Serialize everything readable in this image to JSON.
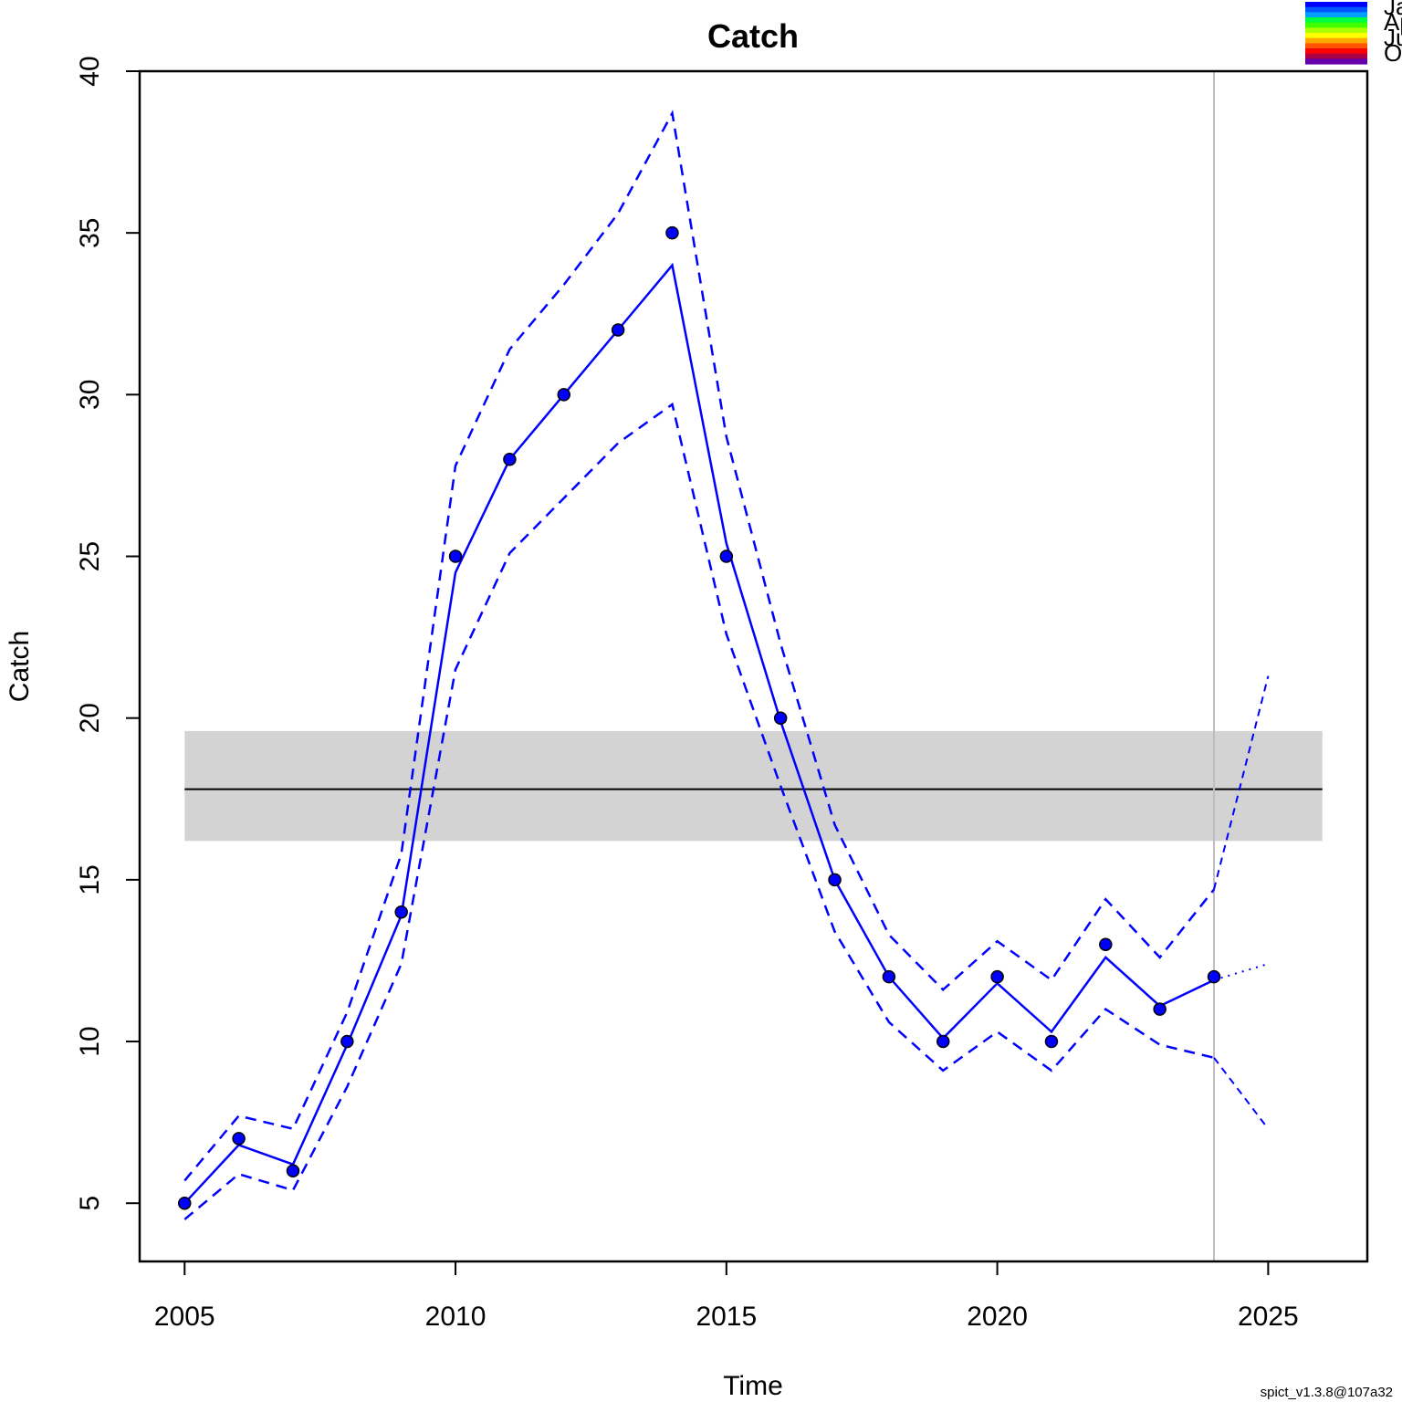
{
  "chart_data": {
    "type": "line",
    "title": "Catch",
    "xlabel": "Time",
    "ylabel": "Catch",
    "xlim": [
      2004.17,
      2026.83
    ],
    "ylim": [
      3.2,
      40.0
    ],
    "x_ticks": [
      2005,
      2010,
      2015,
      2020,
      2025
    ],
    "y_ticks": [
      5,
      10,
      15,
      20,
      25,
      30,
      35,
      40
    ],
    "observed_catch": {
      "x": [
        2005,
        2006,
        2007,
        2008,
        2009,
        2010,
        2011,
        2012,
        2013,
        2014,
        2015,
        2016,
        2017,
        2018,
        2019,
        2020,
        2021,
        2022,
        2023,
        2024
      ],
      "y": [
        5,
        7,
        6,
        10,
        14,
        25,
        28,
        30,
        32,
        35,
        25,
        20,
        15,
        12,
        10,
        12,
        10,
        13,
        11,
        12
      ]
    },
    "predicted_catch": {
      "x": [
        2005,
        2006,
        2007,
        2008,
        2009,
        2010,
        2011,
        2012,
        2013,
        2014,
        2015,
        2016,
        2017,
        2018,
        2019,
        2020,
        2021,
        2022,
        2023,
        2024
      ],
      "y": [
        5.0,
        6.8,
        6.2,
        9.9,
        13.9,
        24.5,
        28.0,
        30.0,
        32.0,
        34.0,
        25.4,
        19.9,
        15.0,
        12.0,
        10.1,
        11.8,
        10.3,
        12.6,
        11.1,
        11.9
      ]
    },
    "ci_upper": [
      5.7,
      7.7,
      7.3,
      10.9,
      15.8,
      27.8,
      31.4,
      33.4,
      35.6,
      38.7,
      28.7,
      22.3,
      16.7,
      13.3,
      11.6,
      13.1,
      11.9,
      14.4,
      12.6,
      14.7
    ],
    "ci_lower": [
      4.5,
      5.9,
      5.4,
      8.6,
      12.4,
      21.5,
      25.1,
      26.8,
      28.5,
      29.7,
      22.6,
      17.9,
      13.4,
      10.6,
      9.1,
      10.3,
      9.1,
      11.0,
      9.9,
      9.5
    ],
    "forecast": {
      "x": [
        2024,
        2025
      ],
      "y": [
        11.9,
        12.4
      ],
      "ci_upper": [
        14.7,
        21.3
      ],
      "ci_lower": [
        9.5,
        7.3
      ]
    },
    "reference_line": {
      "value": 17.8,
      "lower": 16.2,
      "upper": 19.6,
      "x_range": [
        2005,
        2026
      ]
    },
    "vertical_line_x": 2024,
    "legend": {
      "position": "top-right",
      "entries": [
        "Ja",
        "Ap",
        "Ju",
        "Oc"
      ],
      "gradient_colors": [
        "#0000FF",
        "#0055FF",
        "#00A0FF",
        "#00FF40",
        "#40FF00",
        "#AAFF00",
        "#FFFF00",
        "#FFAA00",
        "#FF5500",
        "#FF0000",
        "#AA0044",
        "#6600AA"
      ]
    },
    "colors": {
      "series": "#0000FF",
      "reference_line": "#000000",
      "reference_band": "#D3D3D3",
      "vertical_line": "#BEBEBE"
    },
    "footer": "spict_v1.3.8@107a32"
  }
}
